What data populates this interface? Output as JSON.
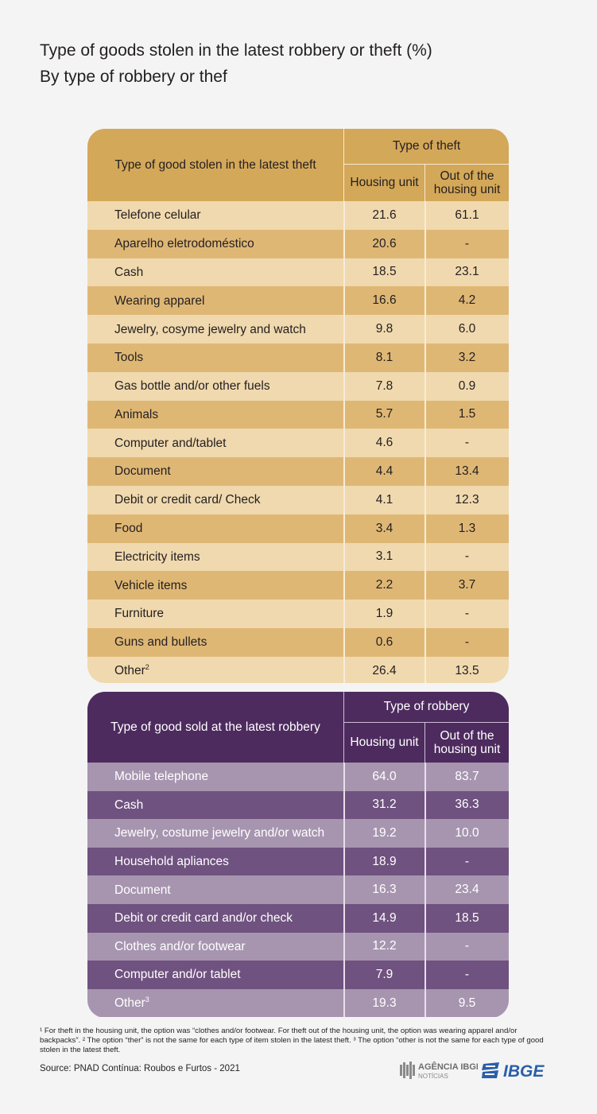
{
  "title_line1": "Type of goods stolen in the latest robbery or theft (%)",
  "title_line2": "By type of robbery or thef",
  "chart_data": [
    {
      "type": "table",
      "header": {
        "row_label": "Type of good stolen in the latest theft",
        "group": "Type of theft",
        "col1": "Housing unit",
        "col2_line1": "Out of the",
        "col2_line2": "housing unit"
      },
      "rows": [
        {
          "label": "Telefone celular",
          "sup": "",
          "v1": "21.6",
          "v2": "61.1"
        },
        {
          "label": "Aparelho eletrodoméstico",
          "sup": "",
          "v1": "20.6",
          "v2": "-"
        },
        {
          "label": "Cash",
          "sup": "",
          "v1": "18.5",
          "v2": "23.1"
        },
        {
          "label": "Wearing apparel",
          "sup": "",
          "v1": "16.6",
          "v2": "4.2"
        },
        {
          "label": "Jewelry, cosyme jewelry and watch",
          "sup": "",
          "v1": "9.8",
          "v2": "6.0"
        },
        {
          "label": "Tools",
          "sup": "",
          "v1": "8.1",
          "v2": "3.2"
        },
        {
          "label": "Gas bottle and/or other fuels",
          "sup": "",
          "v1": "7.8",
          "v2": "0.9"
        },
        {
          "label": "Animals",
          "sup": "",
          "v1": "5.7",
          "v2": "1.5"
        },
        {
          "label": "Computer and/tablet",
          "sup": "",
          "v1": "4.6",
          "v2": "-"
        },
        {
          "label": "Document",
          "sup": "",
          "v1": "4.4",
          "v2": "13.4"
        },
        {
          "label": "Debit or credit card/ Check",
          "sup": "",
          "v1": "4.1",
          "v2": "12.3"
        },
        {
          "label": "Food",
          "sup": "",
          "v1": "3.4",
          "v2": "1.3"
        },
        {
          "label": "Electricity items",
          "sup": "",
          "v1": "3.1",
          "v2": "-"
        },
        {
          "label": "Vehicle items",
          "sup": "",
          "v1": "2.2",
          "v2": "3.7"
        },
        {
          "label": "Furniture",
          "sup": "",
          "v1": "1.9",
          "v2": "-"
        },
        {
          "label": "Guns and bullets",
          "sup": "",
          "v1": "0.6",
          "v2": "-"
        },
        {
          "label": "Other",
          "sup": "2",
          "v1": "26.4",
          "v2": "13.5"
        }
      ]
    },
    {
      "type": "table",
      "header": {
        "row_label": "Type of good sold at the latest robbery",
        "group": "Type of robbery",
        "col1": "Housing unit",
        "col2_line1": "Out of the",
        "col2_line2": "housing unit"
      },
      "rows": [
        {
          "label": "Mobile telephone",
          "sup": "",
          "v1": "64.0",
          "v2": "83.7"
        },
        {
          "label": "Cash",
          "sup": "",
          "v1": "31.2",
          "v2": "36.3"
        },
        {
          "label": "Jewelry, costume jewelry and/or watch",
          "sup": "",
          "v1": "19.2",
          "v2": "10.0"
        },
        {
          "label": "Household apliances",
          "sup": "",
          "v1": "18.9",
          "v2": "-"
        },
        {
          "label": "Document",
          "sup": "",
          "v1": "16.3",
          "v2": "23.4"
        },
        {
          "label": "Debit or credit card and/or check",
          "sup": "",
          "v1": "14.9",
          "v2": "18.5"
        },
        {
          "label": "Clothes and/or footwear",
          "sup": "",
          "v1": "12.2",
          "v2": "-"
        },
        {
          "label": "Computer and/or tablet",
          "sup": "",
          "v1": "7.9",
          "v2": "-"
        },
        {
          "label": "Other",
          "sup": "3",
          "v1": "19.3",
          "v2": "9.5"
        }
      ]
    }
  ],
  "footnote": "¹ For theft in the housing unit, the option was “clothes and/or footwear. For theft out of the housing unit, the option was wearing apparel and/or backpacks”.  ² The option “ther” is not the same for each type of item stolen in the latest theft. ³ The option “other is not the same for each type of good stolen in the latest theft.",
  "source": "Source: PNAD Contínua: Roubos e Furtos - 2021",
  "logo_agencia": "AGÊNCIA IBGE NOTÍCIAS",
  "logo_ibge": "IBGE",
  "colors": {
    "theft_header": "#d4a859",
    "theft_row_light": "#f0d9ae",
    "theft_row_dark": "#dfb775",
    "robbery_header": "#4d2b5e",
    "robbery_row_light": "#a795b0",
    "robbery_row_dark": "#6f527f",
    "ibge_blue": "#2a5fa8"
  }
}
